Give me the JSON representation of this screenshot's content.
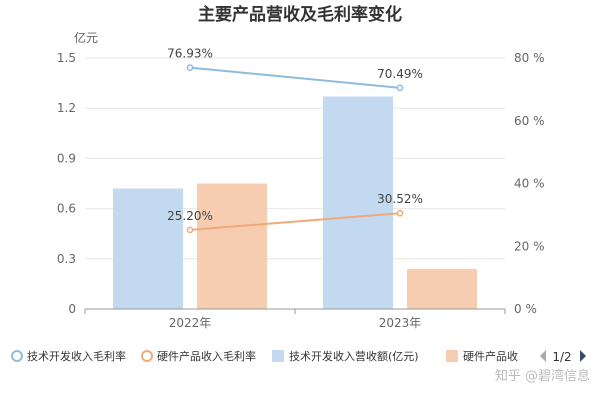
{
  "colors": {
    "tech_margin": "#8fbcdc",
    "hw_margin": "#f0a97a",
    "tech_revenue": "#c2d9f0",
    "hw_revenue": "#f7cdb1",
    "grid": "#e6e6e6",
    "axis": "#999999"
  },
  "legend": {
    "page": "1/2",
    "prev_icon": "triangle-left-icon",
    "next_icon": "triangle-right-icon"
  },
  "watermark": "知乎 @碧湾信息",
  "chart_data": {
    "type": "bar",
    "title": "主要产品营收及毛利率变化",
    "categories": [
      "2022年",
      "2023年"
    ],
    "ylabel_left": "亿元",
    "ylim_left": [
      0,
      1.5
    ],
    "yticks_left": [
      "0",
      "0.3",
      "0.6",
      "0.9",
      "1.2",
      "1.5"
    ],
    "ylim_right": [
      0,
      80
    ],
    "yticks_right": [
      "0 %",
      "20 %",
      "40 %",
      "60 %",
      "80 %"
    ],
    "grid": true,
    "legend_position": "bottom",
    "bar_series": [
      {
        "name": "技术开发收入营收额(亿元)",
        "values": [
          0.72,
          1.27
        ],
        "color": "#c2d9f0"
      },
      {
        "name": "硬件产品收入营收额(亿元)",
        "legend_label": "硬件产品收",
        "values": [
          0.75,
          0.24
        ],
        "color": "#f7cdb1"
      }
    ],
    "line_series": [
      {
        "name": "技术开发收入毛利率",
        "values": [
          76.93,
          70.49
        ],
        "labels": [
          "76.93%",
          "70.49%"
        ],
        "color": "#8fbcdc"
      },
      {
        "name": "硬件产品收入毛利率",
        "values": [
          25.2,
          30.52
        ],
        "labels": [
          "25.20%",
          "30.52%"
        ],
        "color": "#f0a97a"
      }
    ]
  }
}
